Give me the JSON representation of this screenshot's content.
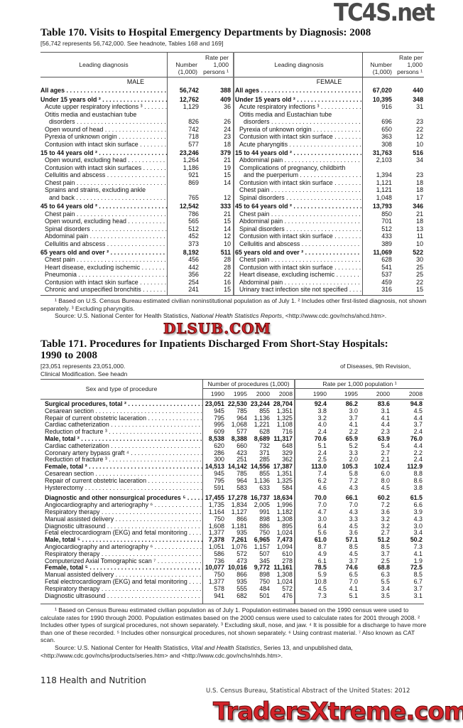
{
  "table170": {
    "title": "Table 170. Visits to Hospital Emergency Departments by Diagnosis: 2008",
    "headnote": "[56,742 represents 56,742,000. See headnote, Tables 168 and 169]",
    "columns": {
      "diagnosis": "Leading diagnosis",
      "number": "Number",
      "number_unit": "(1,000)",
      "rate1": "Rate per",
      "rate2": "1,000",
      "rate3": "persons ¹"
    },
    "male": [
      {
        "type": "head",
        "label": "MALE"
      },
      {
        "type": "total",
        "label": "All ages",
        "number": "56,742",
        "rate": "388"
      },
      {
        "type": "group",
        "label": "Under 15 years old ²",
        "number": "12,762",
        "rate": "409"
      },
      {
        "type": "item",
        "label": "Acute upper respiratory infections ³",
        "number": "1,129",
        "rate": "36"
      },
      {
        "type": "wrap",
        "label": "Otitis media and eustachian tube"
      },
      {
        "type": "cont",
        "label": "disorders",
        "number": "826",
        "rate": "26"
      },
      {
        "type": "item",
        "label": "Open wound of head",
        "number": "742",
        "rate": "24"
      },
      {
        "type": "item",
        "label": "Pyrexia of unknown origin",
        "number": "718",
        "rate": "23"
      },
      {
        "type": "item",
        "label": "Contusion with intact skin surface",
        "number": "577",
        "rate": "18"
      },
      {
        "type": "group",
        "label": "15 to 44 years old ²",
        "number": "23,246",
        "rate": "379"
      },
      {
        "type": "item",
        "label": "Open wound, excluding head",
        "number": "1,264",
        "rate": "21"
      },
      {
        "type": "item",
        "label": "Contusion with intact skin surfaces",
        "number": "1,186",
        "rate": "19"
      },
      {
        "type": "item",
        "label": "Cellulitis and abscess",
        "number": "921",
        "rate": "15"
      },
      {
        "type": "item",
        "label": "Chest pain",
        "number": "869",
        "rate": "14"
      },
      {
        "type": "wrap",
        "label": "Sprains and strains, excluding ankle"
      },
      {
        "type": "cont",
        "label": "and back",
        "number": "765",
        "rate": "12"
      },
      {
        "type": "group",
        "label": "45 to 64 years old ²",
        "number": "12,542",
        "rate": "333"
      },
      {
        "type": "item",
        "label": "Chest pain",
        "number": "786",
        "rate": "21"
      },
      {
        "type": "item",
        "label": "Open wound, excluding head",
        "number": "565",
        "rate": "15"
      },
      {
        "type": "item",
        "label": "Spinal disorders",
        "number": "512",
        "rate": "14"
      },
      {
        "type": "item",
        "label": "Abdominal pain",
        "number": "452",
        "rate": "12"
      },
      {
        "type": "item",
        "label": "Cellulitis and abscess",
        "number": "373",
        "rate": "10"
      },
      {
        "type": "group",
        "label": "65 years old and over ²",
        "number": "8,192",
        "rate": "511"
      },
      {
        "type": "item",
        "label": "Chest pain",
        "number": "456",
        "rate": "28"
      },
      {
        "type": "item",
        "label": "Heart disease, excluding ischemic",
        "number": "442",
        "rate": "28"
      },
      {
        "type": "item",
        "label": "Pneumonia",
        "number": "356",
        "rate": "22"
      },
      {
        "type": "item",
        "label": "Contusion with intact skin surface",
        "number": "254",
        "rate": "16"
      },
      {
        "type": "item",
        "label": "Chronic and unspecified bronchitis",
        "number": "241",
        "rate": "15"
      }
    ],
    "female": [
      {
        "type": "head",
        "label": "FEMALE"
      },
      {
        "type": "total",
        "label": "All ages",
        "number": "67,020",
        "rate": "440"
      },
      {
        "type": "group",
        "label": "Under 15 years old ²",
        "number": "10,395",
        "rate": "348"
      },
      {
        "type": "item",
        "label": "Acute respiratory infections ³",
        "number": "916",
        "rate": "31"
      },
      {
        "type": "wrap",
        "label": "Otitis media and Eustachian tube"
      },
      {
        "type": "cont",
        "label": "disorders",
        "number": "696",
        "rate": "23"
      },
      {
        "type": "item",
        "label": "Pyrexia of unknown origin",
        "number": "650",
        "rate": "22"
      },
      {
        "type": "item",
        "label": "Contusion with intact skin surface",
        "number": "363",
        "rate": "12"
      },
      {
        "type": "item",
        "label": "Acute pharyngitis",
        "number": "308",
        "rate": "10"
      },
      {
        "type": "group",
        "label": "15 to 44 years old ²",
        "number": "31,763",
        "rate": "516"
      },
      {
        "type": "item",
        "label": "Abdominal pain",
        "number": "2,103",
        "rate": "34"
      },
      {
        "type": "wrap",
        "label": "Complications of pregnancy, childbirth"
      },
      {
        "type": "cont",
        "label": "and the puerperium",
        "number": "1,394",
        "rate": "23"
      },
      {
        "type": "item",
        "label": "Contusion with intact skin surface",
        "number": "1,121",
        "rate": "18"
      },
      {
        "type": "item",
        "label": "Chest pain",
        "number": "1,121",
        "rate": "18"
      },
      {
        "type": "item",
        "label": "Spinal disorders",
        "number": "1,048",
        "rate": "17"
      },
      {
        "type": "group",
        "label": "45 to 64 years old ²",
        "number": "13,793",
        "rate": "346"
      },
      {
        "type": "item",
        "label": "Chest pain",
        "number": "850",
        "rate": "21"
      },
      {
        "type": "item",
        "label": "Abdominal pain",
        "number": "701",
        "rate": "18"
      },
      {
        "type": "item",
        "label": "Spinal disorders",
        "number": "512",
        "rate": "13"
      },
      {
        "type": "item",
        "label": "Contusion with intact skin surface",
        "number": "433",
        "rate": "11"
      },
      {
        "type": "item",
        "label": "Cellulitis and abscess",
        "number": "389",
        "rate": "10"
      },
      {
        "type": "group",
        "label": "65 years old and over ²",
        "number": "11,069",
        "rate": "522"
      },
      {
        "type": "item",
        "label": "Chest pain",
        "number": "628",
        "rate": "30"
      },
      {
        "type": "item",
        "label": "Contusion with intact skin surface",
        "number": "541",
        "rate": "25"
      },
      {
        "type": "item",
        "label": "Heart disease, excluding ischemic",
        "number": "537",
        "rate": "25"
      },
      {
        "type": "item",
        "label": "Abdominal pain",
        "number": "459",
        "rate": "22"
      },
      {
        "type": "item",
        "label": "Urinary tract infection site not specified",
        "number": "316",
        "rate": "15"
      }
    ],
    "footnote": "¹ Based on U.S. Census Bureau estimated civilian noninstitutional population as of July 1. ² Includes other first-listed diagnosis, not shown separately. ³ Excluding pharyngitis.",
    "source_prefix": "Source: U.S. National Center for Health Statistics, ",
    "source_italic": "National Health Statistics Reports",
    "source_suffix": ", <http://www.cdc.gov/nchs/ahcd.htm>."
  },
  "table171": {
    "title_line1": "Table 171. Procedures for Inpatients Discharged From Short-Stay Hospitals:",
    "title_line2": "1990 to 2008",
    "headnote_line1_start": "[23,051 represents 23,051,000.",
    "headnote_line1_end": "of Diseases, 9th Revision,",
    "headnote_line2": "Clinical Modification. See headn",
    "columns": {
      "label": "Sex and type of procedure",
      "number_group": "Number of procedures (1,000)",
      "rate_group": "Rate per 1,000 population ¹",
      "years": [
        "1990",
        "1995",
        "2000",
        "2008"
      ]
    },
    "rows": [
      {
        "type": "group",
        "label": "Surgical procedures, total ²",
        "n": [
          "23,051",
          "22,530",
          "23,244",
          "28,704"
        ],
        "r": [
          "92.4",
          "86.2",
          "83.6",
          "94.8"
        ]
      },
      {
        "type": "item",
        "label": "Cesarean section",
        "n": [
          "945",
          "785",
          "855",
          "1,351"
        ],
        "r": [
          "3.8",
          "3.0",
          "3.1",
          "4.5"
        ]
      },
      {
        "type": "item",
        "label": "Repair of current obstetric laceration",
        "n": [
          "795",
          "964",
          "1,136",
          "1,325"
        ],
        "r": [
          "3.2",
          "3.7",
          "4.1",
          "4.4"
        ]
      },
      {
        "type": "item",
        "label": "Cardiac catheterization",
        "n": [
          "995",
          "1,068",
          "1,221",
          "1,108"
        ],
        "r": [
          "4.0",
          "4.1",
          "4.4",
          "3.7"
        ]
      },
      {
        "type": "item",
        "label": "Reduction of fracture ³",
        "n": [
          "609",
          "577",
          "628",
          "716"
        ],
        "r": [
          "2.4",
          "2.2",
          "2.3",
          "2.4"
        ]
      },
      {
        "type": "sub",
        "label": "Male, total ²",
        "n": [
          "8,538",
          "8,388",
          "8,689",
          "11,317"
        ],
        "r": [
          "70.6",
          "65.9",
          "63.9",
          "76.0"
        ]
      },
      {
        "type": "item",
        "label": "Cardiac catheterization",
        "n": [
          "620",
          "660",
          "732",
          "648"
        ],
        "r": [
          "5.1",
          "5.2",
          "5.4",
          "4.4"
        ]
      },
      {
        "type": "item",
        "label": "Coronary artery bypass graft ⁴",
        "n": [
          "286",
          "423",
          "371",
          "329"
        ],
        "r": [
          "2.4",
          "3.3",
          "2.7",
          "2.2"
        ]
      },
      {
        "type": "item",
        "label": "Reduction of fracture ³",
        "n": [
          "300",
          "251",
          "285",
          "362"
        ],
        "r": [
          "2.5",
          "2.0",
          "2.1",
          "2.4"
        ]
      },
      {
        "type": "sub",
        "label": "Female, total ²",
        "n": [
          "14,513",
          "14,142",
          "14,556",
          "17,387"
        ],
        "r": [
          "113.0",
          "105.3",
          "102.4",
          "112.9"
        ]
      },
      {
        "type": "item",
        "label": "Cesarean section",
        "n": [
          "945",
          "785",
          "855",
          "1,351"
        ],
        "r": [
          "7.4",
          "5.8",
          "6.0",
          "8.8"
        ]
      },
      {
        "type": "item",
        "label": "Repair of current obstetric laceration",
        "n": [
          "795",
          "964",
          "1,136",
          "1,325"
        ],
        "r": [
          "6.2",
          "7.2",
          "8.0",
          "8.6"
        ]
      },
      {
        "type": "item",
        "label": "Hysterectomy",
        "n": [
          "591",
          "583",
          "633",
          "584"
        ],
        "r": [
          "4.6",
          "4.3",
          "4.5",
          "3.8"
        ]
      },
      {
        "type": "group",
        "label": "Diagnostic and other nonsurgical procedures ⁵",
        "n": [
          "17,455",
          "17,278",
          "16,737",
          "18,634"
        ],
        "r": [
          "70.0",
          "66.1",
          "60.2",
          "61.5"
        ]
      },
      {
        "type": "item",
        "label": "Angiocardiography and arteriography ⁶",
        "n": [
          "1,735",
          "1,834",
          "2,005",
          "1,996"
        ],
        "r": [
          "7.0",
          "7.0",
          "7.2",
          "6.6"
        ]
      },
      {
        "type": "item",
        "label": "Respiratory therapy",
        "n": [
          "1,164",
          "1,127",
          "991",
          "1,182"
        ],
        "r": [
          "4.7",
          "4.3",
          "3.6",
          "3.9"
        ]
      },
      {
        "type": "item",
        "label": "Manual assisted delivery",
        "n": [
          "750",
          "866",
          "898",
          "1,308"
        ],
        "r": [
          "3.0",
          "3.3",
          "3.2",
          "4.3"
        ]
      },
      {
        "type": "item",
        "label": "Diagnostic ultrasound",
        "n": [
          "1,608",
          "1,181",
          "886",
          "895"
        ],
        "r": [
          "6.4",
          "4.5",
          "3.2",
          "3.0"
        ]
      },
      {
        "type": "item",
        "label": "Fetal electrocardiogram (EKG) and fetal monitoring",
        "n": [
          "1,377",
          "935",
          "750",
          "1,024"
        ],
        "r": [
          "5.6",
          "3.6",
          "2.7",
          "3.4"
        ]
      },
      {
        "type": "sub",
        "label": "Male, total ⁵",
        "n": [
          "7,378",
          "7,261",
          "6,965",
          "7,473"
        ],
        "r": [
          "61.0",
          "57.1",
          "51.2",
          "50.2"
        ]
      },
      {
        "type": "item",
        "label": "Angiocardiography and arteriography ⁶",
        "n": [
          "1,051",
          "1,076",
          "1,157",
          "1,094"
        ],
        "r": [
          "8.7",
          "8.5",
          "8.5",
          "7.3"
        ]
      },
      {
        "type": "item",
        "label": "Respiratory therapy",
        "n": [
          "586",
          "572",
          "507",
          "610"
        ],
        "r": [
          "4.9",
          "4.5",
          "3.7",
          "4.1"
        ]
      },
      {
        "type": "item",
        "label": "Computerized Axial Tomographic scan ⁷",
        "n": [
          "736",
          "473",
          "345",
          "278"
        ],
        "r": [
          "6.1",
          "3.7",
          "2.5",
          "1.9"
        ]
      },
      {
        "type": "sub",
        "label": "Female, total ⁵",
        "n": [
          "10,077",
          "10,016",
          "9,772",
          "11,161"
        ],
        "r": [
          "78.5",
          "74.6",
          "68.8",
          "72.5"
        ]
      },
      {
        "type": "item",
        "label": "Manual assisted delivery",
        "n": [
          "750",
          "866",
          "898",
          "1,308"
        ],
        "r": [
          "5.9",
          "6.5",
          "6.3",
          "8.5"
        ]
      },
      {
        "type": "item",
        "label": "Fetal electrocardiogram (EKG) and fetal monitoring",
        "n": [
          "1,377",
          "935",
          "750",
          "1,024"
        ],
        "r": [
          "10.8",
          "7.0",
          "5.5",
          "6.7"
        ]
      },
      {
        "type": "item",
        "label": "Respiratory therapy",
        "n": [
          "578",
          "555",
          "484",
          "572"
        ],
        "r": [
          "4.5",
          "4.1",
          "3.4",
          "3.7"
        ]
      },
      {
        "type": "item",
        "label": "Diagnostic ultrasound",
        "n": [
          "941",
          "682",
          "501",
          "476"
        ],
        "r": [
          "7.3",
          "5.1",
          "3.5",
          "3.1"
        ]
      }
    ],
    "footnote": "¹ Based on Census Bureau estimated civilian population as of July 1. Population estimates based on the 1990 census were used to calculate rates for 1990 through 2000. Population estimates based on the 2000 census were used to calculate rates for 2001 through 2008. ² Includes other types of surgical procedures, not shown separately. ³ Excluding skull, nose, and jaw. ⁴ It is possible for a discharge to have more than one of these recorded. ⁵ Includes other nonsurgical procedures, not shown separately. ⁶ Using contrast material. ⁷ Also known as CAT scan.",
    "source_prefix": "Source: U.S. National Center for Health Statistics, ",
    "source_italic": "Vital and Health Statistics",
    "source_suffix": ", Series 13, and unpublished data, <http://www.cdc.gov/nchs/products/series.htm> and <http://www.cdc.gov/nchs/nhds.htm>."
  },
  "footer": {
    "page_section": "118  Health and Nutrition",
    "publication": "U.S. Census Bureau, Statistical Abstract of the United States: 2012"
  },
  "watermarks": {
    "top": "TC4S.net",
    "middle": "DLSUB.COM",
    "bottom": "TradersXtreme.com"
  },
  "colors": {
    "watermark_red": "#d4242a",
    "watermark_grey": "#4a4a4a",
    "rule": "#555555"
  }
}
